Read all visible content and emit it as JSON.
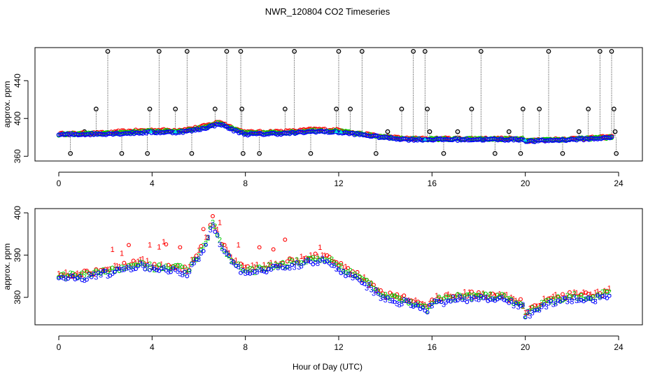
{
  "chart_data": {
    "title": "NWR_120804  CO2 Timeseries",
    "xlabel": "Hour of Day (UTC)",
    "colors": {
      "series1": "#ff0000",
      "series2": "#00cc00",
      "series3": "#0000ff",
      "flag": "#00e5e5",
      "outlier": "#000000"
    },
    "panels": [
      {
        "type": "scatter",
        "ylabel": "approx. ppm",
        "xlim": [
          0,
          24
        ],
        "ylim": [
          355,
          475
        ],
        "xticks": [
          0,
          4,
          8,
          12,
          16,
          20,
          24
        ],
        "yticks": [
          360,
          400,
          440
        ],
        "series_anchors": {
          "x": [
            0,
            1,
            2,
            3,
            4,
            5,
            5.5,
            6,
            6.5,
            6.9,
            7.5,
            8,
            8.5,
            10,
            11,
            12,
            13,
            14,
            15,
            16,
            18,
            19.9,
            20.1,
            21,
            22,
            23,
            23.7
          ],
          "y": [
            383,
            383.5,
            384,
            385,
            386,
            386,
            387,
            389,
            392,
            395,
            388,
            384,
            384,
            385,
            387,
            386,
            383,
            380,
            378,
            378,
            378,
            378,
            376,
            377,
            378,
            379,
            380
          ]
        },
        "outliers_x": [
          0.5,
          1.1,
          1.6,
          2.1,
          2.7,
          3.8,
          3.9,
          4.3,
          4.6,
          5.0,
          5.5,
          5.7,
          6.7,
          7.2,
          7.8,
          7.85,
          7.9,
          8.6,
          9.7,
          10.1,
          10.8,
          11.9,
          12.0,
          12.5,
          13.0,
          13.6,
          14.1,
          14.7,
          15.2,
          15.7,
          15.8,
          15.9,
          16.5,
          17.1,
          17.7,
          18.1,
          18.7,
          19.3,
          19.8,
          19.9,
          20.6,
          21.0,
          21.6,
          22.3,
          22.7,
          23.2,
          23.7,
          23.8,
          23.85,
          23.9
        ],
        "outliers_y": [
          363,
          386,
          410,
          471,
          363,
          363,
          410,
          471,
          386,
          410,
          471,
          363,
          410,
          471,
          471,
          410,
          363,
          363,
          410,
          471,
          363,
          410,
          471,
          410,
          471,
          363,
          386,
          410,
          471,
          471,
          410,
          386,
          363,
          386,
          410,
          471,
          363,
          386,
          363,
          410,
          410,
          471,
          363,
          386,
          410,
          471,
          471,
          410,
          386,
          363
        ]
      },
      {
        "type": "scatter",
        "ylabel": "approx. ppm",
        "xlim": [
          0,
          24
        ],
        "ylim": [
          373.5,
          401
        ],
        "xticks": [
          0,
          4,
          8,
          12,
          16,
          20,
          24
        ],
        "yticks": [
          380,
          390,
          400
        ],
        "series_anchors": {
          "x": [
            0,
            1,
            2,
            3,
            3.5,
            4,
            5,
            5.5,
            6,
            6.4,
            6.6,
            7,
            7.5,
            8,
            9,
            10,
            11,
            11.5,
            12,
            13,
            13.5,
            14,
            15,
            15.8,
            16,
            17,
            18,
            19,
            19.9,
            20,
            21,
            22,
            23,
            23.7
          ],
          "y": [
            385,
            385,
            386,
            387,
            388,
            387,
            387,
            386,
            390,
            394,
            398,
            392,
            388,
            386,
            387,
            388,
            389,
            389,
            387,
            384,
            382,
            380,
            379,
            377,
            379,
            380,
            380,
            380,
            378,
            376,
            379,
            380,
            380,
            381
          ]
        },
        "labels_red": [
          "1",
          "1",
          "1",
          "1",
          "1",
          "1",
          "1",
          "1"
        ],
        "labels_green": [
          "2",
          "2",
          "2",
          "2",
          "2",
          "2"
        ],
        "labels_blue": [
          "3",
          "3",
          "3",
          "3",
          "3",
          "3"
        ]
      }
    ]
  }
}
